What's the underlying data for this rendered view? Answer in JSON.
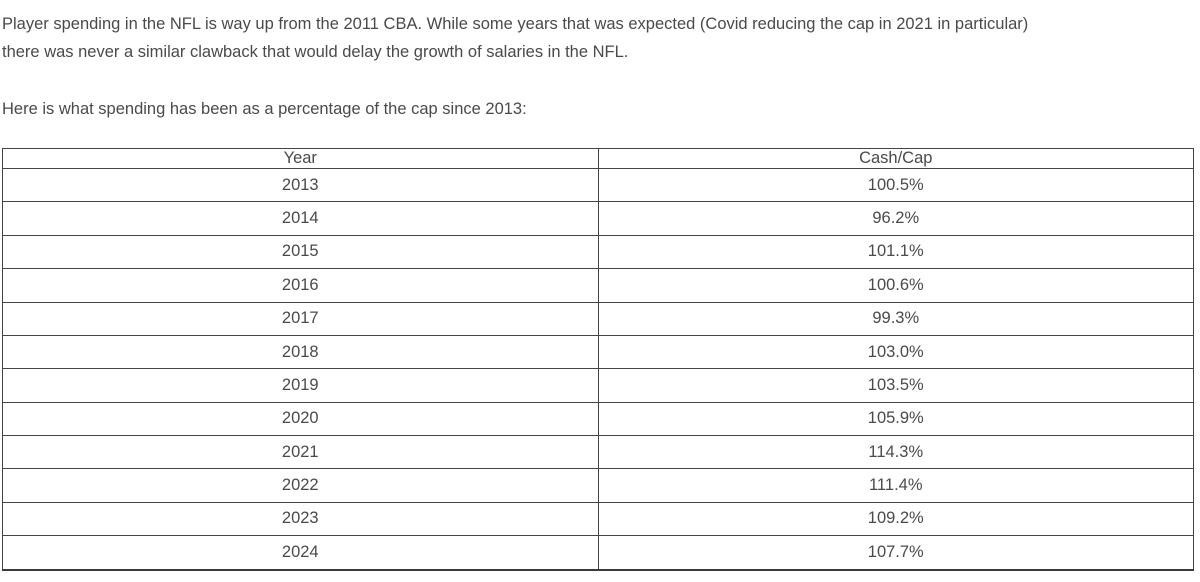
{
  "page": {
    "intro_line1": "Player spending in the NFL is way up from the 2011 CBA. While some years that was expected (Covid reducing the cap in 2021 in particular)",
    "intro_line2": "there was never a similar clawback that would delay the growth of salaries in the NFL.",
    "subtitle": "Here is what spending has been as a percentage of the cap since 2013:"
  },
  "table": {
    "headers": [
      "Year",
      "Cash/Cap"
    ],
    "rows": [
      {
        "year": "2013",
        "cash_cap": "100.5%"
      },
      {
        "year": "2014",
        "cash_cap": "96.2%"
      },
      {
        "year": "2015",
        "cash_cap": "101.1%"
      },
      {
        "year": "2016",
        "cash_cap": "100.6%"
      },
      {
        "year": "2017",
        "cash_cap": "99.3%"
      },
      {
        "year": "2018",
        "cash_cap": "103.0%"
      },
      {
        "year": "2019",
        "cash_cap": "103.5%"
      },
      {
        "year": "2020",
        "cash_cap": "105.9%"
      },
      {
        "year": "2021",
        "cash_cap": "114.3%"
      },
      {
        "year": "2022",
        "cash_cap": "111.4%"
      },
      {
        "year": "2023",
        "cash_cap": "109.2%"
      },
      {
        "year": "2024",
        "cash_cap": "107.7%"
      }
    ]
  },
  "colors": {
    "text": "#4a4a4a",
    "border": "#444444",
    "background": "#ffffff"
  }
}
